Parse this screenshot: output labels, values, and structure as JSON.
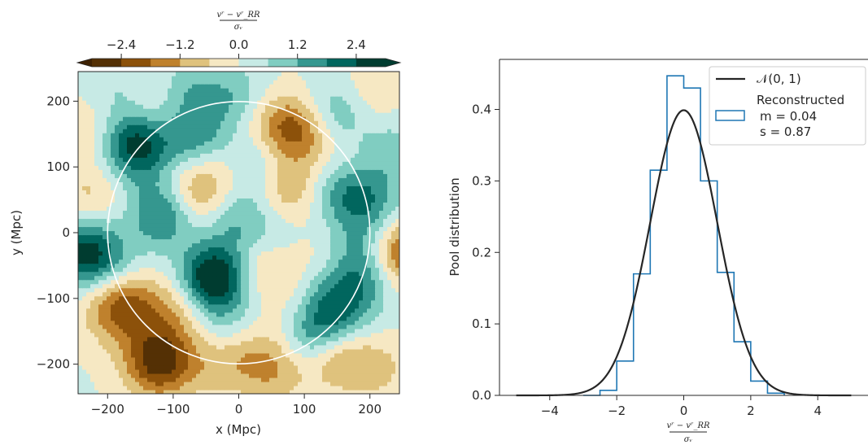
{
  "chart_data": [
    {
      "type": "heatmap",
      "panel": "left",
      "xlabel": "x (Mpc)",
      "ylabel": "y (Mpc)",
      "xlim": [
        -245,
        245
      ],
      "ylim": [
        -245,
        245
      ],
      "xticks": [
        -200,
        -100,
        0,
        100,
        200
      ],
      "yticks": [
        -200,
        -100,
        0,
        100,
        200
      ],
      "xtick_labels": [
        "−200",
        "−100",
        "0",
        "100",
        "200"
      ],
      "ytick_labels": [
        "−200",
        "−100",
        "0",
        "100",
        "200"
      ],
      "circle_radius": 200,
      "colorbar": {
        "label_num": "vʳ − vʳ_RR",
        "label_den": "σᵥ",
        "location": "top",
        "levels": [
          -3.0,
          -2.4,
          -1.8,
          -1.2,
          -0.6,
          0.0,
          0.6,
          1.2,
          1.8,
          2.4,
          3.0
        ],
        "ticks": [
          -2.4,
          -1.2,
          0.0,
          1.2,
          2.4
        ],
        "tick_labels": [
          "−2.4",
          "−1.2",
          "0.0",
          "1.2",
          "2.4"
        ],
        "colors": [
          "#543005",
          "#8c510a",
          "#bf812d",
          "#dfc27d",
          "#f6e8c3",
          "#c7eae5",
          "#80cdc1",
          "#35978f",
          "#01665e",
          "#003c30"
        ],
        "extend_colors": [
          "#3e2204",
          "#003c30"
        ]
      },
      "blobs": [
        {
          "x": -190,
          "y": 220,
          "v": 0.6
        },
        {
          "x": -130,
          "y": 190,
          "v": -0.6
        },
        {
          "x": -75,
          "y": 220,
          "v": 0.9
        },
        {
          "x": -70,
          "y": 150,
          "v": 1.5
        },
        {
          "x": -160,
          "y": 140,
          "v": 2.1
        },
        {
          "x": -5,
          "y": 205,
          "v": 1.0
        },
        {
          "x": 50,
          "y": 165,
          "v": -0.9
        },
        {
          "x": 90,
          "y": 155,
          "v": -1.8
        },
        {
          "x": 150,
          "y": 185,
          "v": 1.2
        },
        {
          "x": 200,
          "y": 210,
          "v": -0.7
        },
        {
          "x": 230,
          "y": 130,
          "v": 0.8
        },
        {
          "x": 165,
          "y": 85,
          "v": -1.3
        },
        {
          "x": 160,
          "y": 70,
          "v": 2.3
        },
        {
          "x": 205,
          "y": 60,
          "v": 1.0
        },
        {
          "x": 75,
          "y": 70,
          "v": -1.4
        },
        {
          "x": -65,
          "y": 60,
          "v": -1.5
        },
        {
          "x": -115,
          "y": 30,
          "v": 2.0
        },
        {
          "x": -150,
          "y": 115,
          "v": 0.8
        },
        {
          "x": -225,
          "y": 60,
          "v": -0.8
        },
        {
          "x": -240,
          "y": -30,
          "v": 2.2
        },
        {
          "x": -200,
          "y": -40,
          "v": 1.0
        },
        {
          "x": -195,
          "y": -120,
          "v": -0.8
        },
        {
          "x": -170,
          "y": -110,
          "v": -1.6
        },
        {
          "x": -95,
          "y": -115,
          "v": -1.0
        },
        {
          "x": -45,
          "y": -75,
          "v": 1.1
        },
        {
          "x": -35,
          "y": -65,
          "v": 2.2
        },
        {
          "x": 0,
          "y": 0,
          "v": 0.7
        },
        {
          "x": 0,
          "y": 40,
          "v": 0.8
        },
        {
          "x": 60,
          "y": -20,
          "v": 0.9
        },
        {
          "x": 35,
          "y": -45,
          "v": -1.3
        },
        {
          "x": -120,
          "y": -180,
          "v": -0.9
        },
        {
          "x": -125,
          "y": -200,
          "v": -2.0
        },
        {
          "x": -55,
          "y": -200,
          "v": -0.6
        },
        {
          "x": 0,
          "y": -190,
          "v": -0.9
        },
        {
          "x": 55,
          "y": -205,
          "v": -1.2
        },
        {
          "x": 85,
          "y": -135,
          "v": -0.8
        },
        {
          "x": 110,
          "y": -155,
          "v": 2.1
        },
        {
          "x": 155,
          "y": -120,
          "v": 1.5
        },
        {
          "x": 145,
          "y": -185,
          "v": -1.5
        },
        {
          "x": 210,
          "y": -205,
          "v": -0.8
        },
        {
          "x": 245,
          "y": -30,
          "v": -2.4
        },
        {
          "x": 195,
          "y": -60,
          "v": 1.5
        },
        {
          "x": 195,
          "y": 0,
          "v": 1.0
        },
        {
          "x": -20,
          "y": -140,
          "v": 0.7
        },
        {
          "x": 100,
          "y": -40,
          "v": -0.6
        },
        {
          "x": 135,
          "y": -85,
          "v": 0.6
        },
        {
          "x": -230,
          "y": 160,
          "v": -0.7
        },
        {
          "x": 15,
          "y": 110,
          "v": 0.6
        },
        {
          "x": -10,
          "y": 90,
          "v": -0.7
        },
        {
          "x": 40,
          "y": 100,
          "v": 0.7
        }
      ]
    },
    {
      "type": "bar",
      "panel": "right",
      "xlabel_num": "vʳ − vʳ_RR",
      "xlabel_den": "σᵥ",
      "ylabel": "Pool distribution",
      "xlim": [
        -5.5,
        5.5
      ],
      "ylim": [
        0,
        0.47
      ],
      "xticks": [
        -4,
        -2,
        0,
        2,
        4
      ],
      "xtick_labels": [
        "−4",
        "−2",
        "0",
        "2",
        "4"
      ],
      "yticks": [
        0.0,
        0.1,
        0.2,
        0.3,
        0.4
      ],
      "ytick_labels": [
        "0.0",
        "0.1",
        "0.2",
        "0.3",
        "0.4"
      ],
      "histogram": {
        "name": "Reconstructed",
        "color": "#1f77b4",
        "bin_edges": [
          -3.0,
          -2.5,
          -2.0,
          -1.5,
          -1.0,
          -0.5,
          0.0,
          0.5,
          1.0,
          1.5,
          2.0,
          2.5,
          3.0
        ],
        "values": [
          0.0,
          0.007,
          0.048,
          0.17,
          0.315,
          0.447,
          0.43,
          0.3,
          0.172,
          0.075,
          0.02,
          0.003
        ]
      },
      "curve": {
        "name": "𝒩(0, 1)",
        "color": "#262626",
        "x_range": [
          -5,
          5
        ],
        "mean": 0,
        "std": 1
      },
      "legend": {
        "location": "top-right",
        "entries": [
          "𝒩(0, 1)",
          "Reconstructed"
        ],
        "stats": [
          "m = 0.04",
          "s = 0.87"
        ]
      }
    }
  ]
}
